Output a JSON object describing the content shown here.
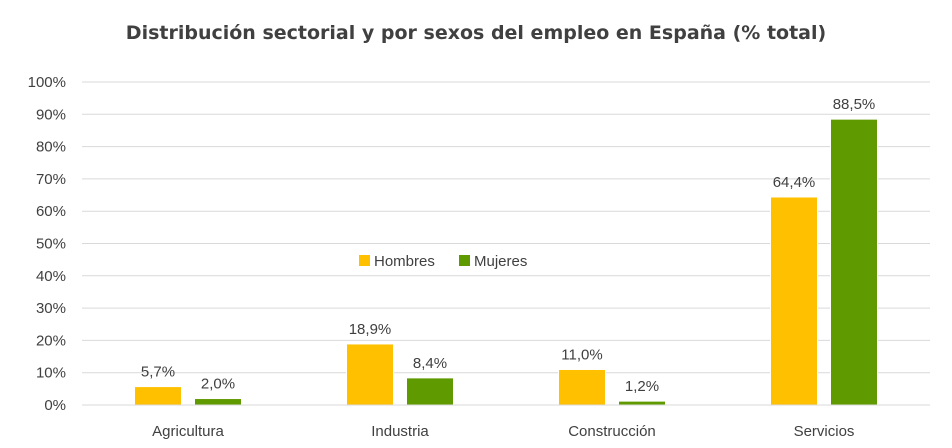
{
  "chart_data": {
    "type": "bar",
    "title": "Distribución sectorial y por sexos del empleo en España (% total)",
    "categories": [
      "Agricultura",
      "Industria",
      "Construcción",
      "Servicios"
    ],
    "series": [
      {
        "name": "Hombres",
        "color": "#FFC000",
        "values": [
          5.7,
          18.9,
          11.0,
          64.4
        ],
        "labels": [
          "5,7%",
          "18,9%",
          "11,0%",
          "64,4%"
        ]
      },
      {
        "name": "Mujeres",
        "color": "#5F9A00",
        "values": [
          2.0,
          8.4,
          1.2,
          88.5
        ],
        "labels": [
          "2,0%",
          "8,4%",
          "1,2%",
          "88,5%"
        ]
      }
    ],
    "ylim": [
      0,
      100
    ],
    "yticks": [
      "0%",
      "10%",
      "20%",
      "30%",
      "40%",
      "50%",
      "60%",
      "70%",
      "80%",
      "90%",
      "100%"
    ],
    "xlabel": "",
    "ylabel": "",
    "grid": true,
    "legend_position": "center"
  }
}
